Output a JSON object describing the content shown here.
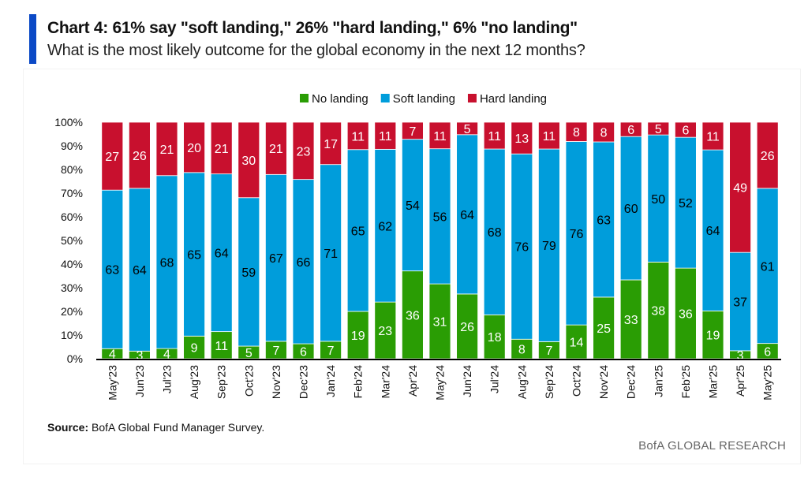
{
  "header": {
    "title": "Chart 4: 61% say \"soft landing,\" 26% \"hard landing,\" 6% \"no landing\"",
    "subtitle": "What is the most likely outcome for the global economy in the next 12 months?"
  },
  "footer": {
    "source_label": "Source:",
    "source_text": " BofA Global Fund Manager Survey.",
    "brand": "BofA GLOBAL RESEARCH"
  },
  "chart_data": {
    "type": "bar",
    "stacked": true,
    "normalized_to_100": true,
    "title": "",
    "xlabel": "",
    "ylabel": "",
    "ylim": [
      0,
      100
    ],
    "y_ticks": [
      "0%",
      "10%",
      "20%",
      "30%",
      "40%",
      "50%",
      "60%",
      "70%",
      "80%",
      "90%",
      "100%"
    ],
    "grid": false,
    "legend_position": "top-center",
    "categories": [
      "May'23",
      "Jun'23",
      "Jul'23",
      "Aug'23",
      "Sep'23",
      "Oct'23",
      "Nov'23",
      "Dec'23",
      "Jan'24",
      "Feb'24",
      "Mar'24",
      "Apr'24",
      "May'24",
      "Jun'24",
      "Jul'24",
      "Aug'24",
      "Sep'24",
      "Oct'24",
      "Nov'24",
      "Dec'24",
      "Jan'25",
      "Feb'25",
      "Mar'25",
      "Apr'25",
      "May'25"
    ],
    "series": [
      {
        "name": "No landing",
        "color": "#2a9d04",
        "label_color": "#ffffff",
        "values": [
          4,
          3,
          4,
          9,
          11,
          5,
          7,
          6,
          7,
          19,
          23,
          36,
          31,
          26,
          18,
          8,
          7,
          14,
          25,
          33,
          38,
          36,
          19,
          3,
          6
        ]
      },
      {
        "name": "Soft landing",
        "color": "#009ddb",
        "label_color": "#000000",
        "values": [
          63,
          64,
          68,
          65,
          64,
          59,
          67,
          66,
          71,
          65,
          62,
          54,
          56,
          64,
          68,
          76,
          79,
          76,
          63,
          60,
          50,
          52,
          64,
          37,
          61
        ]
      },
      {
        "name": "Hard landing",
        "color": "#c8102e",
        "label_color": "#ffffff",
        "values": [
          27,
          26,
          21,
          20,
          21,
          30,
          21,
          23,
          17,
          11,
          11,
          7,
          11,
          5,
          11,
          13,
          11,
          8,
          8,
          6,
          5,
          6,
          11,
          49,
          26
        ]
      }
    ]
  }
}
